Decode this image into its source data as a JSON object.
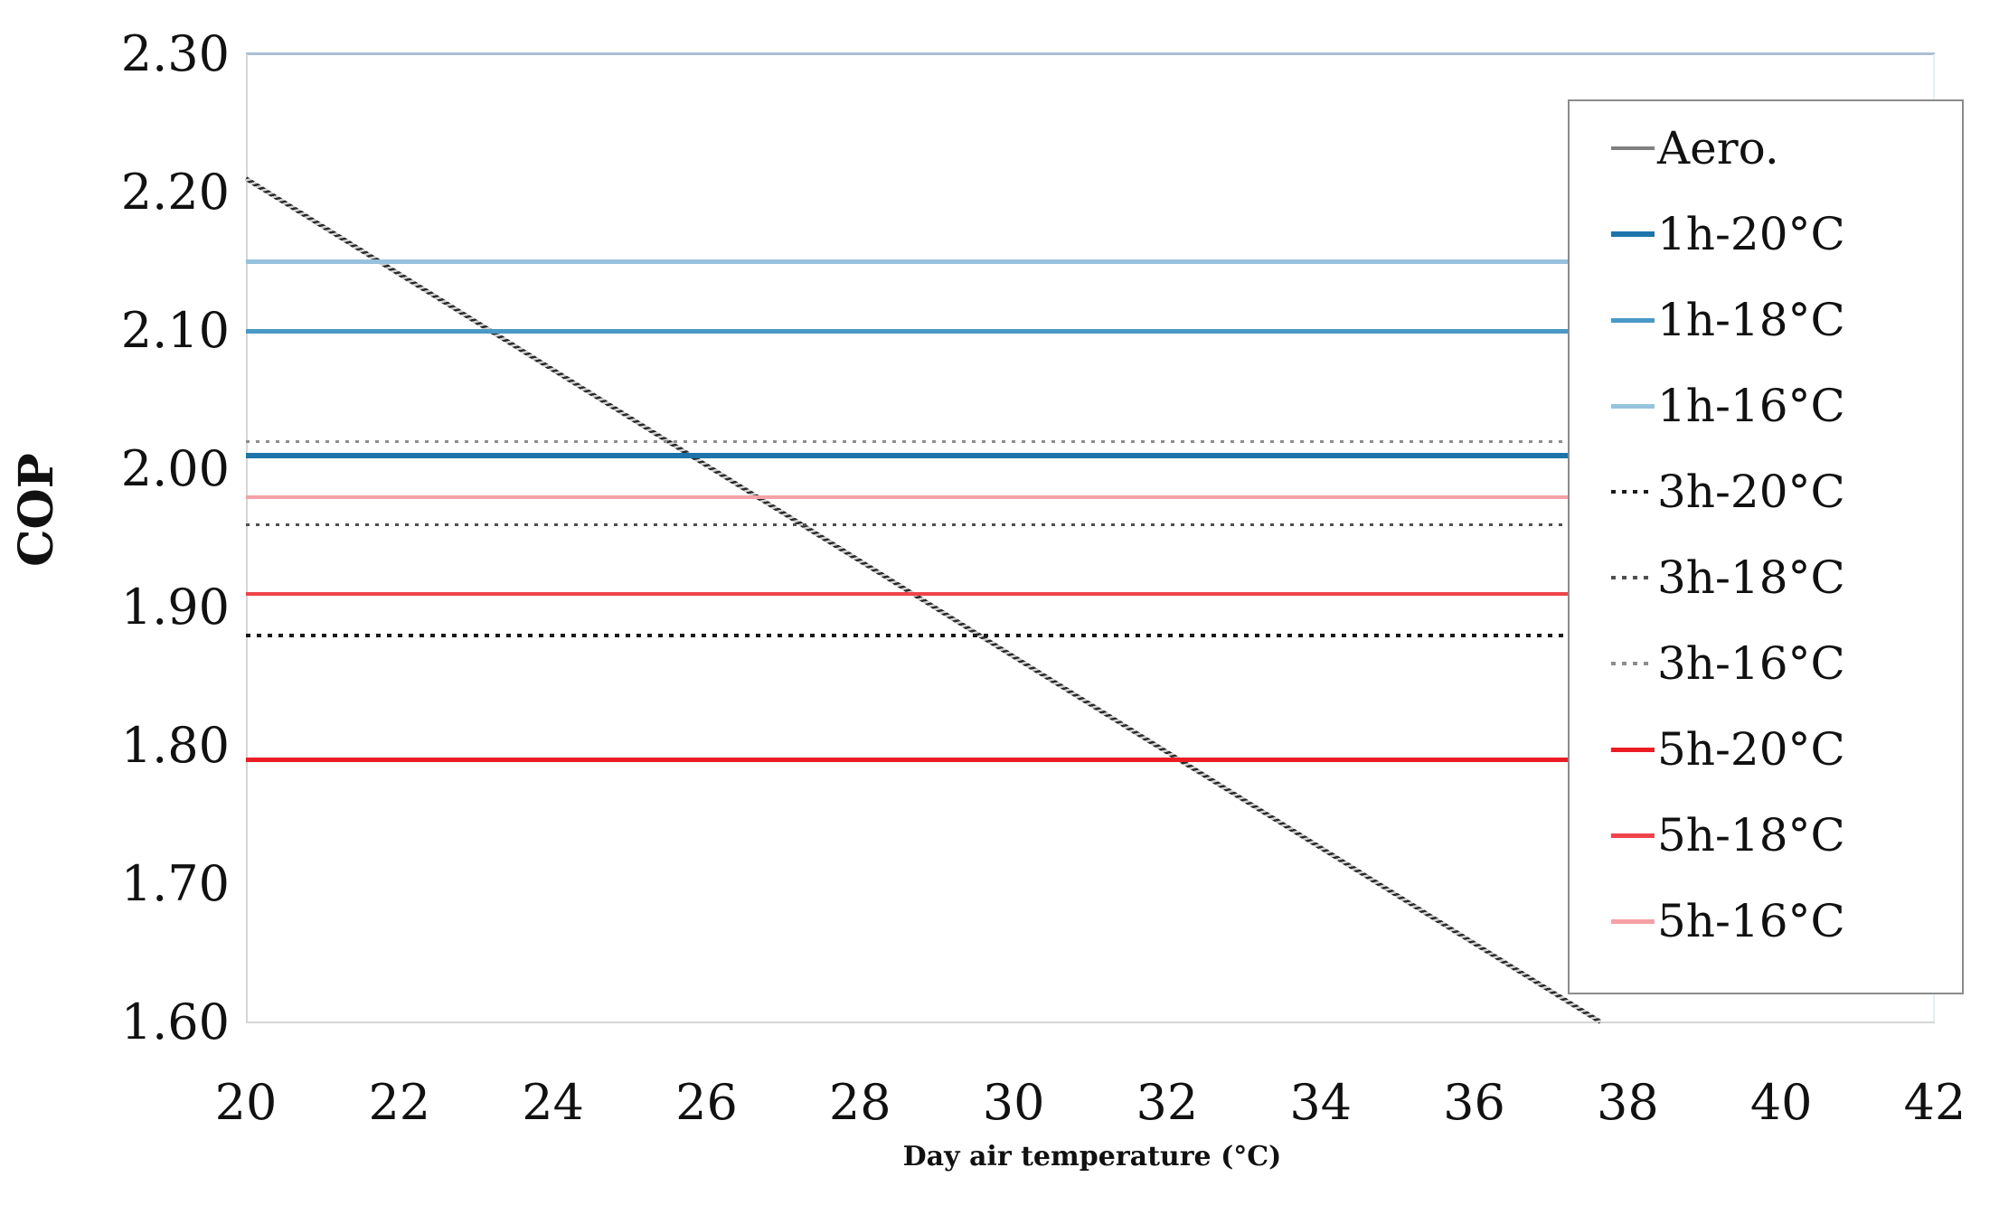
{
  "chart_data": {
    "type": "line",
    "title": "",
    "xlabel": "Day air temperature (°C)",
    "ylabel": "COP",
    "x_axis": {
      "min": 20,
      "max": 42,
      "tick_step": 2,
      "tick_labels": [
        "20",
        "22",
        "24",
        "26",
        "28",
        "30",
        "32",
        "34",
        "36",
        "38",
        "40",
        "42"
      ]
    },
    "y_axis": {
      "min": 1.6,
      "max": 2.3,
      "tick_step": 0.1,
      "tick_labels": [
        "2.30",
        "2.20",
        "2.10",
        "2.00",
        "1.90",
        "1.80",
        "1.70",
        "1.60"
      ]
    },
    "grid": false,
    "legend": {
      "position": "right-overlay",
      "border_color": "#8b8b8b",
      "background": "#ffffff"
    },
    "series": [
      {
        "name": "Aero.",
        "kind": "diagonal",
        "style": "hatched",
        "color": "#2a2a2a",
        "swatch_color": "#808080",
        "line_width": 5,
        "points": [
          [
            20,
            2.21
          ],
          [
            37.65,
            1.6
          ]
        ]
      },
      {
        "name": "1h-20°C",
        "kind": "hline",
        "style": "solid",
        "color": "#1c74aa",
        "swatch_color": "#1c74aa",
        "line_width": 6,
        "value": 2.01
      },
      {
        "name": "1h-18°C",
        "kind": "hline",
        "style": "solid",
        "color": "#4a99c6",
        "swatch_color": "#4a99c6",
        "line_width": 5,
        "value": 2.1
      },
      {
        "name": "1h-16°C",
        "kind": "hline",
        "style": "solid",
        "color": "#96c2dd",
        "swatch_color": "#96c2dd",
        "line_width": 5,
        "value": 2.15
      },
      {
        "name": "3h-20°C",
        "kind": "hline",
        "style": "dotted",
        "color": "#1a1a1a",
        "swatch_color": "#1a1a1a",
        "line_width": 4,
        "value": 1.88
      },
      {
        "name": "3h-18°C",
        "kind": "hline",
        "style": "dotted",
        "color": "#4f4f4f",
        "swatch_color": "#4f4f4f",
        "line_width": 3,
        "value": 1.96
      },
      {
        "name": "3h-16°C",
        "kind": "hline",
        "style": "dotted",
        "color": "#8d8d8d",
        "swatch_color": "#8d8d8d",
        "line_width": 3,
        "value": 2.02
      },
      {
        "name": "5h-20°C",
        "kind": "hline",
        "style": "solid",
        "color": "#ec1c24",
        "swatch_color": "#ec1c24",
        "line_width": 5,
        "value": 1.79
      },
      {
        "name": "5h-18°C",
        "kind": "hline",
        "style": "solid",
        "color": "#ee444a",
        "swatch_color": "#ee444a",
        "line_width": 4,
        "value": 1.91
      },
      {
        "name": "5h-16°C",
        "kind": "hline",
        "style": "solid",
        "color": "#f5a0a6",
        "swatch_color": "#f5a0a6",
        "line_width": 4,
        "value": 1.98
      }
    ],
    "frame_colors": {
      "top_border": "#aabfd3",
      "left_axis": "#d6d6d6",
      "bottom_axis": "#d6d6d6",
      "right_border": "#e2f0f5"
    }
  }
}
